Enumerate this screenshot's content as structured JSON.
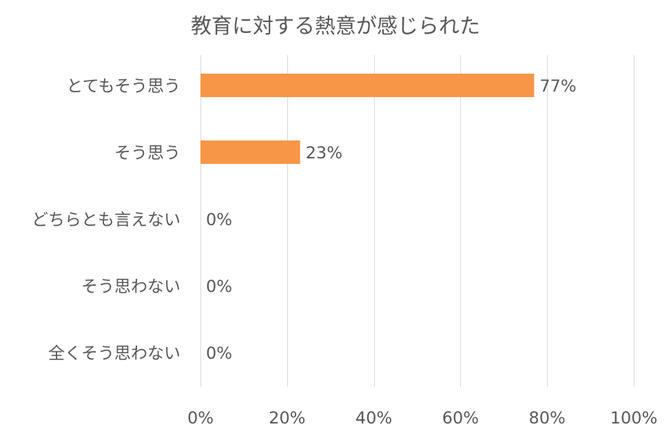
{
  "chart_data": {
    "type": "bar",
    "orientation": "horizontal",
    "title": "教育に対する熱意が感じられた",
    "xlabel": "",
    "ylabel": "",
    "categories": [
      "とてもそう思う",
      "そう思う",
      "どちらとも言えない",
      "そう思わない",
      "全くそう思わない"
    ],
    "values": [
      77,
      23,
      0,
      0,
      0
    ],
    "data_labels": [
      "77%",
      "23%",
      "0%",
      "0%",
      "0%"
    ],
    "xlim": [
      0,
      100
    ],
    "x_ticks": [
      0,
      20,
      40,
      60,
      80,
      100
    ],
    "x_tick_labels": [
      "0%",
      "20%",
      "40%",
      "60%",
      "80%",
      "100%"
    ],
    "grid": true,
    "legend": "none",
    "bar_color": "#f79646",
    "grid_color": "#d9d9d9",
    "text_color": "#595959"
  }
}
